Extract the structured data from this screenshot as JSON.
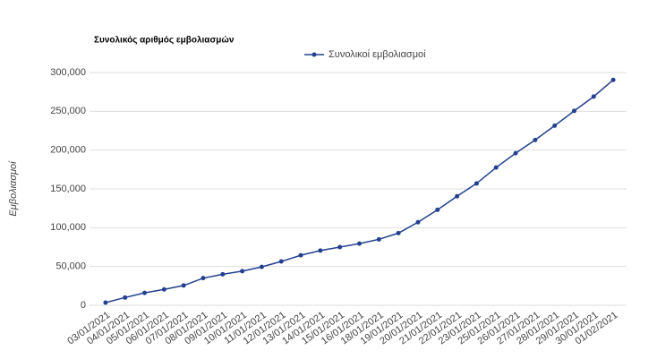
{
  "chart_data": {
    "type": "line",
    "title": "Συνολικός αριθμός εμβολιασμών",
    "y_label": "Εμβολιασμοί",
    "categories": [
      "03/01/2021",
      "04/01/2021",
      "05/01/2021",
      "06/01/2021",
      "07/01/2021",
      "08/01/2021",
      "09/01/2021",
      "10/01/2021",
      "11/01/2021",
      "12/01/2021",
      "13/01/2021",
      "14/01/2021",
      "15/01/2021",
      "16/01/2021",
      "18/01/2021",
      "19/01/2021",
      "20/01/2021",
      "21/01/2021",
      "22/01/2021",
      "23/01/2021",
      "25/01/2021",
      "26/01/2021",
      "27/01/2021",
      "28/01/2021",
      "29/01/2021",
      "30/01/2021",
      "01/02/2021"
    ],
    "series": [
      {
        "name": "Συνολικοί εμβολιασμοί",
        "color": "#22408f",
        "values": [
          3500,
          10000,
          16000,
          20500,
          25500,
          35000,
          40000,
          44000,
          49500,
          56500,
          64500,
          70500,
          75000,
          79500,
          85000,
          93000,
          107000,
          123000,
          140500,
          157000,
          177500,
          196000,
          213000,
          231500,
          250500,
          269000,
          290500
        ]
      }
    ],
    "ylim": [
      0,
      300000
    ],
    "yticks": [
      0,
      {
        "value": 50000,
        "label": "50,000"
      },
      {
        "value": 100000,
        "label": "100,000"
      },
      {
        "value": 150000,
        "label": "150,000"
      },
      {
        "value": 200000,
        "label": "200,000"
      },
      {
        "value": 250000,
        "label": "250,000"
      },
      {
        "value": 300000,
        "label": "300,000"
      }
    ],
    "grid": true
  }
}
